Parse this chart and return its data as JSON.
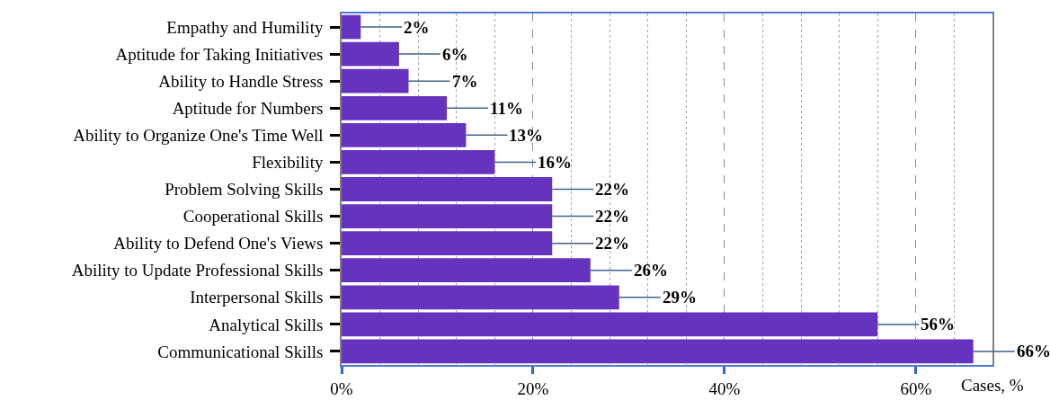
{
  "chart_data": {
    "type": "bar",
    "orientation": "horizontal",
    "categories": [
      "Empathy and Humility",
      "Aptitude for Taking Initiatives",
      "Ability to Handle Stress",
      "Aptitude for Numbers",
      "Ability to Organize One's Time Well",
      "Flexibility",
      "Problem Solving Skills",
      "Cooperational Skills",
      "Ability to Defend One's Views",
      "Ability to Update Professional Skills",
      "Interpersonal Skills",
      "Analytical Skills",
      "Communicational Skills"
    ],
    "values": [
      2,
      6,
      7,
      11,
      13,
      16,
      22,
      22,
      22,
      26,
      29,
      56,
      66
    ],
    "value_labels": [
      "2%",
      "6%",
      "7%",
      "11%",
      "13%",
      "16%",
      "22%",
      "22%",
      "22%",
      "26%",
      "29%",
      "56%",
      "66%"
    ],
    "color": "#6633bf",
    "xlabel": "Cases, %",
    "xlim": [
      0,
      68
    ],
    "xticks": [
      {
        "value": 0,
        "label": "0%"
      },
      {
        "value": 4,
        "label": null
      },
      {
        "value": 8,
        "label": null
      },
      {
        "value": 12,
        "label": null
      },
      {
        "value": 16,
        "label": null
      },
      {
        "value": 20,
        "label": "20%"
      },
      {
        "value": 24,
        "label": null
      },
      {
        "value": 28,
        "label": null
      },
      {
        "value": 32,
        "label": null
      },
      {
        "value": 36,
        "label": null
      },
      {
        "value": 40,
        "label": "40%"
      },
      {
        "value": 44,
        "label": null
      },
      {
        "value": 48,
        "label": null
      },
      {
        "value": 52,
        "label": null
      },
      {
        "value": 56,
        "label": null
      },
      {
        "value": 60,
        "label": "60%"
      },
      {
        "value": 64,
        "label": null
      }
    ],
    "grid": "x"
  }
}
